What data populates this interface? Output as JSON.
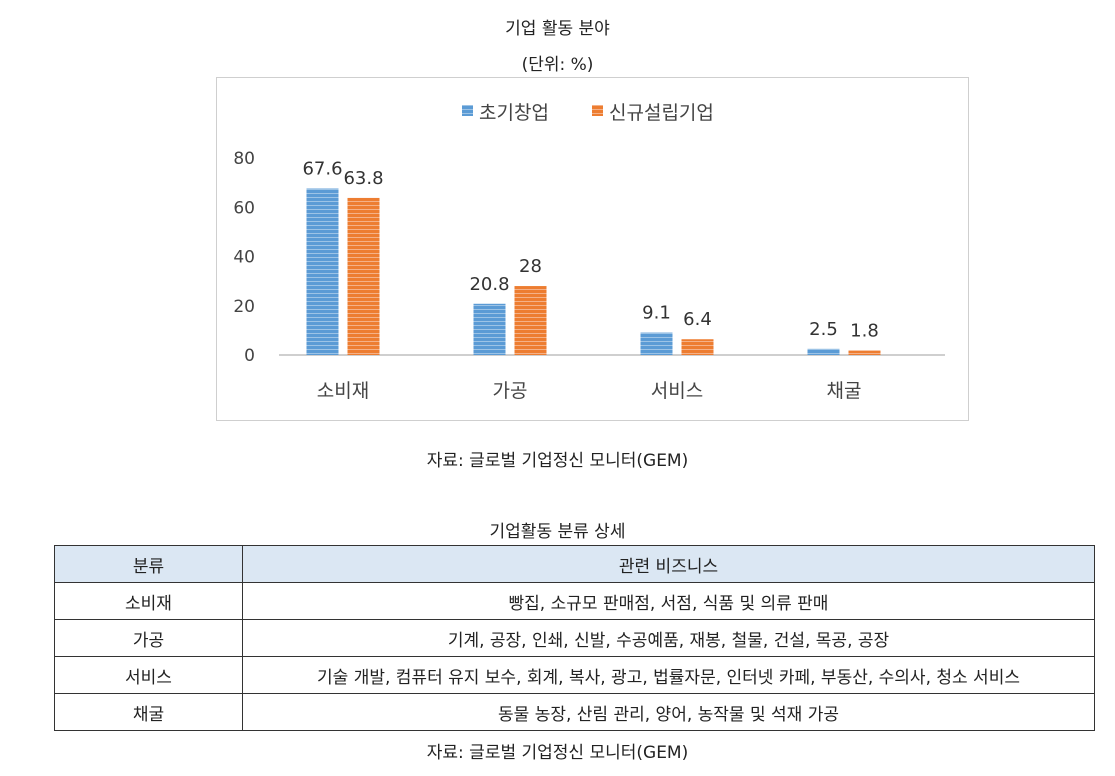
{
  "chart_title": "기업 활동 분야",
  "chart_unit": "(단위: %)",
  "chart_source": "자료: 글로벌 기업정신 모니터(GEM)",
  "colors": {
    "series1": "#5b9bd5",
    "series2": "#ed7d31",
    "axis": "#bfbfbf",
    "frame": "#cfcfcf"
  },
  "chart_data": {
    "type": "bar",
    "categories": [
      "소비재",
      "가공",
      "서비스",
      "채굴"
    ],
    "series": [
      {
        "name": "초기창업",
        "values": [
          67.6,
          20.8,
          9.1,
          2.5
        ],
        "labels": [
          "67.6",
          "20.8",
          "9.1",
          "2.5"
        ]
      },
      {
        "name": "신규설립기업",
        "values": [
          63.8,
          28,
          6.4,
          1.8
        ],
        "labels": [
          "63.8",
          "28",
          "6.4",
          "1.8"
        ]
      }
    ],
    "y_ticks": [
      "80",
      "60",
      "40",
      "20",
      "0"
    ],
    "ylim": [
      0,
      80
    ],
    "legend": "top-center",
    "grid": false
  },
  "table": {
    "title": "기업활동 분류 상세",
    "headers": [
      "분류",
      "관련 비즈니스"
    ],
    "rows": [
      [
        "소비재",
        "빵집, 소규모 판매점, 서점, 식품 및 의류 판매"
      ],
      [
        "가공",
        "기계, 공장, 인쇄, 신발, 수공예품, 재봉, 철물, 건설, 목공, 공장"
      ],
      [
        "서비스",
        "기술 개발, 컴퓨터 유지 보수, 회계, 복사, 광고, 법률자문, 인터넷 카페, 부동산, 수의사, 청소 서비스"
      ],
      [
        "채굴",
        "동물 농장, 산림 관리, 양어, 농작물 및 석재 가공"
      ]
    ],
    "source": "자료: 글로벌 기업정신 모니터(GEM)"
  }
}
